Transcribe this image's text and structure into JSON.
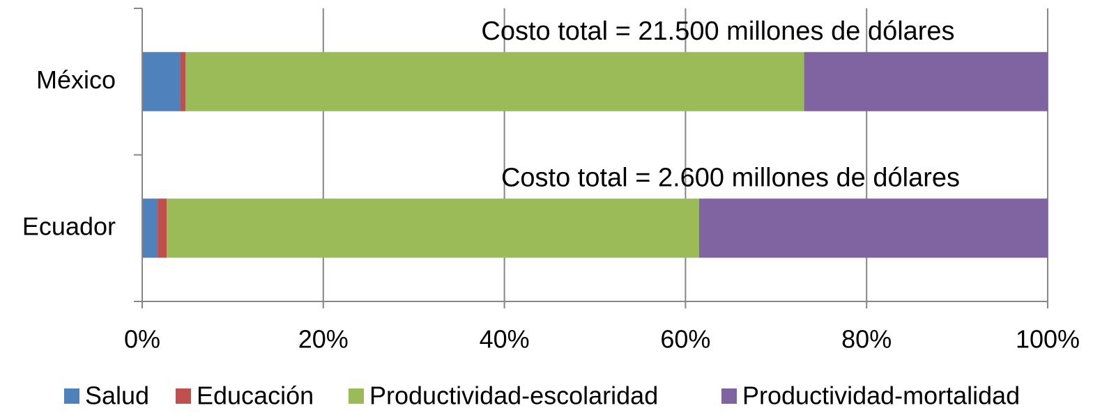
{
  "chart_data": {
    "type": "stacked-bar-horizontal",
    "categories": [
      "México",
      "Ecuador"
    ],
    "series": [
      {
        "name": "Salud",
        "color": "#4f81bd",
        "values": [
          4.2,
          1.7
        ]
      },
      {
        "name": "Educación",
        "color": "#c0504d",
        "values": [
          0.6,
          1.0
        ]
      },
      {
        "name": "Productividad-escolaridad",
        "color": "#9bbb59",
        "values": [
          68.3,
          58.8
        ]
      },
      {
        "name": "Productividad-mortalidad",
        "color": "#8064a2",
        "values": [
          26.9,
          38.5
        ]
      }
    ],
    "annotations": [
      "Costo total = 21.500 millones de dólares",
      "Costo total = 2.600 millones de dólares"
    ],
    "xlim": [
      0,
      100
    ],
    "xticks": [
      {
        "value": 0,
        "label": "0%"
      },
      {
        "value": 20,
        "label": "20%"
      },
      {
        "value": 40,
        "label": "40%"
      },
      {
        "value": 60,
        "label": "60%"
      },
      {
        "value": 80,
        "label": "80%"
      },
      {
        "value": 100,
        "label": "100%"
      }
    ],
    "grid": true,
    "legend": "bottom"
  }
}
